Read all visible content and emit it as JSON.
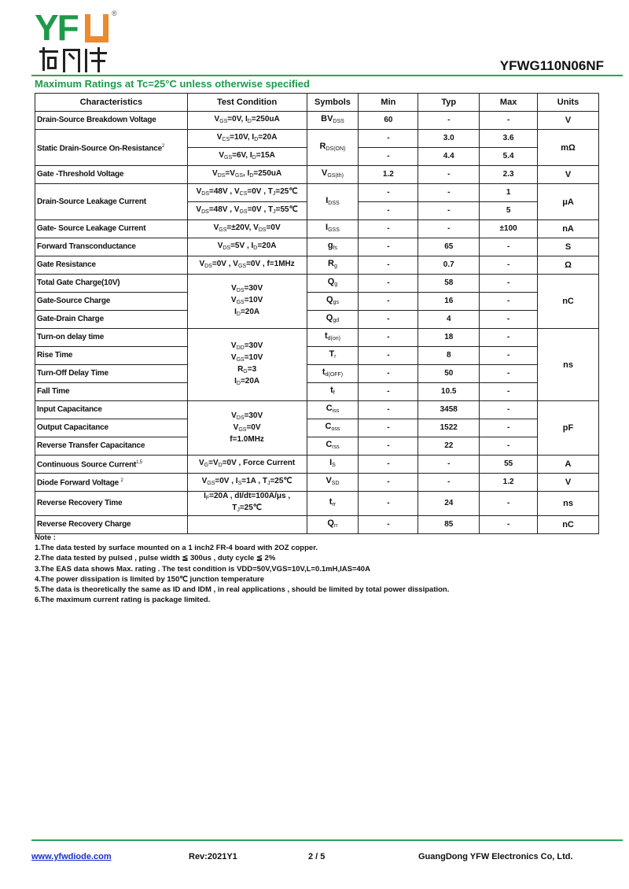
{
  "colors": {
    "brand_green": "#1e9a4a",
    "brand_orange": "#ee8a2c",
    "link": "#1a2fd0"
  },
  "logo": {
    "letters": "YFU",
    "registered": "®",
    "chinese": "佑风微"
  },
  "header": {
    "part_number": "YFWG110N06NF",
    "subtitle": "Maximum Ratings at Tc=25°C unless otherwise specified"
  },
  "table": {
    "headers": [
      "Characteristics",
      "Test Condition",
      "Symbols",
      "Min",
      "Typ",
      "Max",
      "Units"
    ],
    "rows": [
      {
        "char": "Drain-Source Breakdown Voltage",
        "cond": [
          [
            "V",
            "GS",
            "=0V, I",
            "D",
            "=250uA"
          ]
        ],
        "sym": [
          "BV",
          "DSS"
        ],
        "min": "60",
        "typ": "-",
        "max": "-",
        "unit": "V"
      },
      {
        "char": "Static Drain-Source On-Resistance",
        "sup": "2",
        "span": 2,
        "cond": [
          [
            "V",
            "CS",
            "=10V, I",
            "D",
            "=20A"
          ]
        ],
        "sym": [
          "R",
          "DS(ON)"
        ],
        "min": "-",
        "typ": "3.0",
        "max": "3.6",
        "unit": "mΩ"
      },
      {
        "cond": [
          [
            "V",
            "GS",
            "=6V, I",
            "D",
            "=15A"
          ]
        ],
        "min": "-",
        "typ": "4.4",
        "max": "5.4"
      },
      {
        "char": "Gate -Threshold  Voltage",
        "cond": [
          [
            "V",
            "DS",
            "=V",
            "GS",
            ", I",
            "D",
            "=250uA"
          ]
        ],
        "sym": [
          "V",
          "GS(th)"
        ],
        "min": "1.2",
        "typ": "-",
        "max": "2.3",
        "unit": "V"
      },
      {
        "char": "Drain-Source Leakage Current",
        "span": 2,
        "cond": [
          [
            "V",
            "DS",
            "=48V , V",
            "CS",
            "=0V , T",
            "J",
            "=25℃"
          ]
        ],
        "sym": [
          "I",
          "DSS"
        ],
        "min": "-",
        "typ": "-",
        "max": "1",
        "unit": "μA"
      },
      {
        "cond": [
          [
            "V",
            "DS",
            "=48V , V",
            "GS",
            "=0V , T",
            "J",
            "=55℃"
          ]
        ],
        "min": "-",
        "typ": "-",
        "max": "5"
      },
      {
        "char": "Gate- Source Leakage Current",
        "cond": [
          [
            "V",
            "GS",
            "=±20V, V",
            "DS",
            "=0V"
          ]
        ],
        "sym": [
          "I",
          "GSS"
        ],
        "min": "-",
        "typ": "-",
        "max": "±100",
        "unit": "nA"
      },
      {
        "char": "Forward Transconductance",
        "cond": [
          [
            "V",
            "DS",
            "=5V , I",
            "D",
            "=20A"
          ]
        ],
        "sym": [
          "g",
          "fs"
        ],
        "min": "-",
        "typ": "65",
        "max": "-",
        "unit": "S"
      },
      {
        "char": "Gate Resistance",
        "cond": [
          [
            "V",
            "DS",
            "=0V , V",
            "GS",
            "=0V , f=1MHz"
          ]
        ],
        "sym": [
          "R",
          "g"
        ],
        "min": "-",
        "typ": "0.7",
        "max": "-",
        "unit": "Ω"
      },
      {
        "char": "Total Gate Charge(10V)",
        "condspan": 3,
        "unitspan": 3,
        "cond": [
          [
            "V",
            "DS",
            "=30V"
          ],
          [
            "V",
            "GS",
            "=10V"
          ],
          [
            "I",
            "D",
            "=20A"
          ]
        ],
        "sym": [
          "Q",
          "g"
        ],
        "min": "-",
        "typ": "58",
        "max": "-",
        "unit": "nC"
      },
      {
        "char": "Gate-Source Charge",
        "sym": [
          "Q",
          "gs"
        ],
        "min": "-",
        "typ": "16",
        "max": "-"
      },
      {
        "char": "Gate-Drain Charge",
        "sym": [
          "Q",
          "gd"
        ],
        "min": "-",
        "typ": "4",
        "max": "-"
      },
      {
        "char": "Turn-on delay time",
        "condspan": 4,
        "unitspan": 4,
        "cond": [
          [
            "V",
            "DD",
            "=30V"
          ],
          [
            "V",
            "GS",
            "=10V"
          ],
          [
            "R",
            "G",
            "=3"
          ],
          [
            "I",
            "D",
            "=20A"
          ]
        ],
        "sym": [
          "t",
          "d(on)"
        ],
        "min": "-",
        "typ": "18",
        "max": "-",
        "unit": "ns"
      },
      {
        "char": "Rise Time",
        "sym": [
          "T",
          "r"
        ],
        "min": "-",
        "typ": "8",
        "max": "-"
      },
      {
        "char": "Turn-Off  Delay Time",
        "sym": [
          "t",
          "d(OFF)"
        ],
        "min": "-",
        "typ": "50",
        "max": "-"
      },
      {
        "char": "Fall Time",
        "sym": [
          "t",
          "f"
        ],
        "min": "-",
        "typ": "10.5",
        "max": "-"
      },
      {
        "char": "Input Capacitance",
        "condspan": 3,
        "unitspan": 3,
        "cond": [
          [
            "V",
            "DS",
            "=30V"
          ],
          [
            "V",
            "GS",
            "=0V"
          ],
          [
            "f=1.0MHz"
          ]
        ],
        "sym": [
          "C",
          "iss"
        ],
        "min": "-",
        "typ": "3458",
        "max": "-",
        "unit": "pF"
      },
      {
        "char": "Output Capacitance",
        "sym": [
          "C",
          "oss"
        ],
        "min": "-",
        "typ": "1522",
        "max": "-"
      },
      {
        "char": "Reverse Transfer Capacitance",
        "sym": [
          "C",
          "rss"
        ],
        "min": "-",
        "typ": "22",
        "max": "-"
      },
      {
        "char": "Continuous Source Current",
        "sup": "1,5",
        "cond": [
          [
            "V",
            "G",
            "=V",
            "D",
            "=0V , Force Current"
          ]
        ],
        "sym": [
          "I",
          "S"
        ],
        "min": "-",
        "typ": "-",
        "max": "55",
        "unit": "A"
      },
      {
        "char": "Diode Forward Voltage ",
        "sup": "2",
        "cond": [
          [
            "V",
            "GS",
            "=0V , I",
            "S",
            "=1A , T",
            "J",
            "=25℃"
          ]
        ],
        "sym": [
          "V",
          "SD"
        ],
        "min": "-",
        "typ": "-",
        "max": "1.2",
        "unit": "V"
      },
      {
        "char": "Reverse Recovery Time",
        "tall": true,
        "cond": [
          [
            "I",
            "F",
            "=20A , dI/dt=100A/μs ,"
          ],
          [
            "T",
            "J",
            "=25℃"
          ]
        ],
        "sym": [
          "t",
          "rr"
        ],
        "min": "-",
        "typ": "24",
        "max": "-",
        "unit": "ns"
      },
      {
        "char": "Reverse Recovery Charge",
        "cond": [
          [
            ""
          ]
        ],
        "sym": [
          "Q",
          "rr"
        ],
        "min": "-",
        "typ": "85",
        "max": "-",
        "unit": "nC"
      }
    ]
  },
  "notes": {
    "title": "Note :",
    "items": [
      "1.The data tested by surface mounted on a 1 inch2 FR-4 board with 2OZ copper.",
      "2.The data tested by pulsed , pulse width ≦ 300us , duty cycle ≦ 2%",
      "3.The EAS data shows Max. rating . The test condition is VDD=50V,VGS=10V,L=0.1mH,IAS=40A",
      "4.The power dissipation is limited by 150℃ junction temperature",
      "5.The data is theoretically the same as ID and IDM , in real applications , should be limited by total power dissipation.",
      "6.The maximum current rating is package limited."
    ]
  },
  "footer": {
    "website": "www.yfwdiode.com",
    "revision": "Rev:2021Y1",
    "page": "2 / 5",
    "company": "GuangDong YFW Electronics Co, Ltd."
  }
}
